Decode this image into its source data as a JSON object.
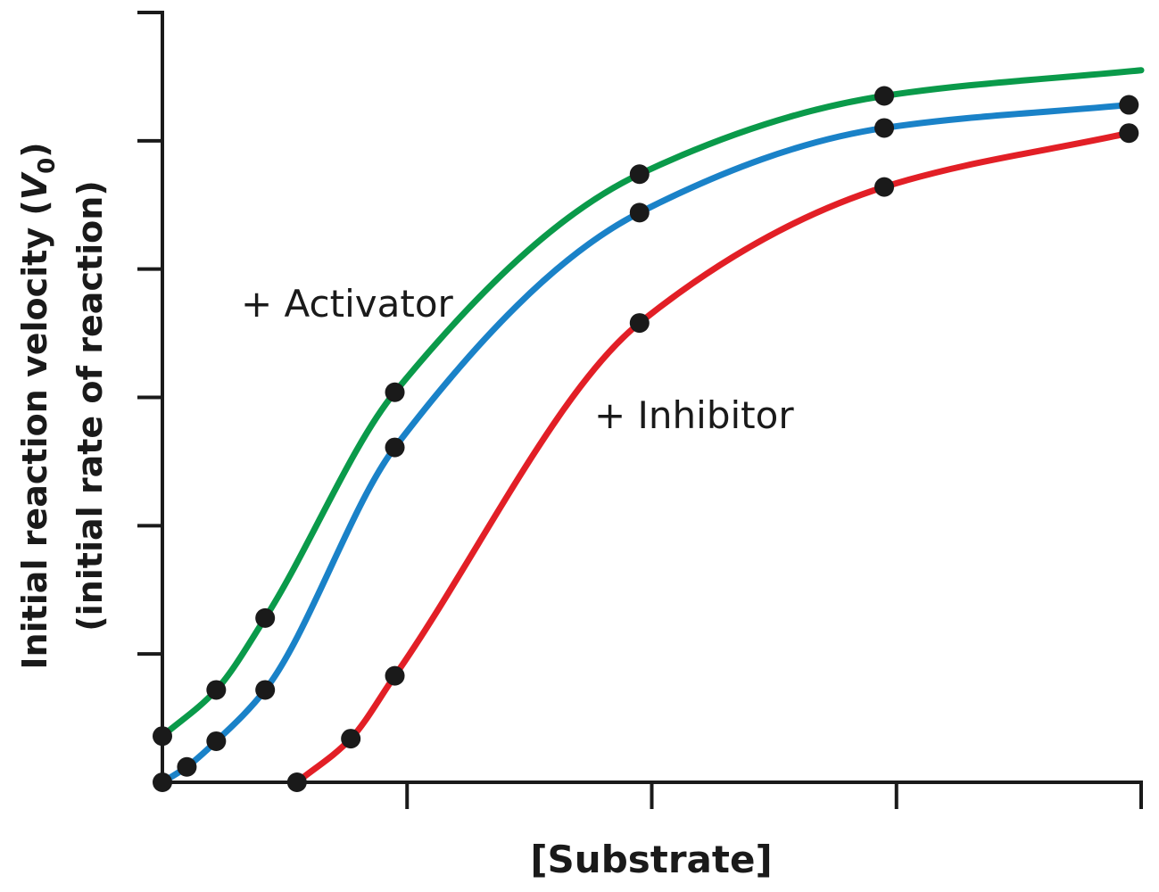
{
  "chart_data": {
    "type": "line",
    "xlabel": "[Substrate]",
    "ylabel_line1": "Initial reaction velocity (",
    "ylabel_var": "V",
    "ylabel_sub": "0",
    "ylabel_close": ")",
    "ylabel_line2": "(initial rate of reaction)",
    "xlim": [
      0,
      4
    ],
    "ylim": [
      0,
      6
    ],
    "x_ticks": [
      0,
      1,
      2,
      3,
      4
    ],
    "y_ticks": [
      0,
      1,
      2,
      3,
      4,
      5,
      6
    ],
    "tick_labels_shown": false,
    "grid": false,
    "legend": "none",
    "annotations": [
      {
        "text": "+ Activator",
        "series": "activator"
      },
      {
        "text": "+ Inhibitor",
        "series": "inhibitor"
      }
    ],
    "series": [
      {
        "id": "activator",
        "color": "#0a9a4a",
        "points": [
          [
            0.0,
            0.36
          ],
          [
            0.22,
            0.72
          ],
          [
            0.42,
            1.28
          ],
          [
            0.95,
            3.04
          ],
          [
            1.95,
            4.74
          ],
          [
            2.95,
            5.35
          ],
          [
            4.0,
            5.55
          ]
        ],
        "markers": [
          [
            0.0,
            0.36
          ],
          [
            0.22,
            0.72
          ],
          [
            0.42,
            1.28
          ],
          [
            0.95,
            3.04
          ],
          [
            1.95,
            4.74
          ],
          [
            2.95,
            5.35
          ]
        ]
      },
      {
        "id": "baseline",
        "color": "#1a82c8",
        "points": [
          [
            0.0,
            0.0
          ],
          [
            0.1,
            0.12
          ],
          [
            0.22,
            0.32
          ],
          [
            0.42,
            0.72
          ],
          [
            0.95,
            2.61
          ],
          [
            1.95,
            4.44
          ],
          [
            2.95,
            5.1
          ],
          [
            3.95,
            5.28
          ]
        ],
        "markers": [
          [
            0.0,
            0.0
          ],
          [
            0.1,
            0.12
          ],
          [
            0.22,
            0.32
          ],
          [
            0.42,
            0.72
          ],
          [
            0.95,
            2.61
          ],
          [
            1.95,
            4.44
          ],
          [
            2.95,
            5.1
          ],
          [
            3.95,
            5.28
          ]
        ]
      },
      {
        "id": "inhibitor",
        "color": "#e21f26",
        "points": [
          [
            0.55,
            0.0
          ],
          [
            0.77,
            0.34
          ],
          [
            0.95,
            0.83
          ],
          [
            1.95,
            3.58
          ],
          [
            2.95,
            4.64
          ],
          [
            3.95,
            5.06
          ]
        ],
        "markers": [
          [
            0.55,
            0.0
          ],
          [
            0.77,
            0.34
          ],
          [
            0.95,
            0.83
          ],
          [
            1.95,
            3.58
          ],
          [
            2.95,
            4.64
          ],
          [
            3.95,
            5.06
          ]
        ]
      }
    ]
  }
}
